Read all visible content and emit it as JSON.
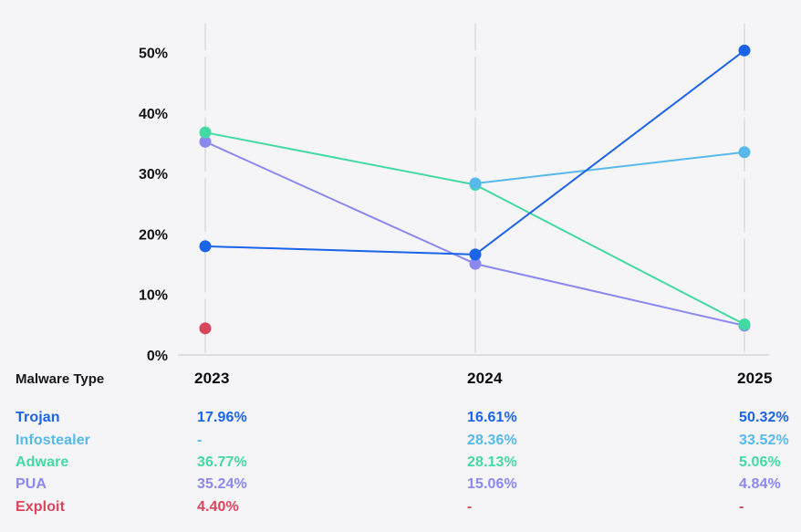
{
  "chart_data": {
    "type": "line",
    "x": [
      "2023",
      "2024",
      "2025"
    ],
    "series": [
      {
        "name": "Trojan",
        "color": "#1b63e8",
        "values": [
          17.96,
          16.61,
          50.32
        ]
      },
      {
        "name": "Infostealer",
        "color": "#56b9ea",
        "values": [
          null,
          28.36,
          33.52
        ]
      },
      {
        "name": "Adware",
        "color": "#43d9a2",
        "values": [
          36.77,
          28.13,
          5.06
        ]
      },
      {
        "name": "PUA",
        "color": "#8b88f0",
        "values": [
          35.24,
          15.06,
          4.84
        ]
      },
      {
        "name": "Exploit",
        "color": "#d9455a",
        "values": [
          4.4,
          null,
          null
        ]
      }
    ],
    "ylim": [
      0,
      50
    ],
    "yticks": [
      "0%",
      "10%",
      "20%",
      "30%",
      "40%",
      "50%"
    ],
    "xlabel": "",
    "ylabel": "",
    "title": "",
    "grid": "vertical-dashed",
    "grid_color": "#dcdcdf",
    "axis_color": "#d6d6d9",
    "legend_position": "table-below"
  },
  "table": {
    "header": {
      "label": "Malware Type",
      "cols": [
        "2023",
        "2024",
        "2025"
      ]
    },
    "rows": [
      {
        "name": "Trojan",
        "color": "#1b63e8",
        "values": [
          "17.96%",
          "16.61%",
          "50.32%"
        ]
      },
      {
        "name": "Infostealer",
        "color": "#56b9ea",
        "values": [
          "-",
          "28.36%",
          "33.52%"
        ]
      },
      {
        "name": "Adware",
        "color": "#43d9a2",
        "values": [
          "36.77%",
          "28.13%",
          "5.06%"
        ]
      },
      {
        "name": "PUA",
        "color": "#8b88f0",
        "values": [
          "35.24%",
          "15.06%",
          "4.84%"
        ]
      },
      {
        "name": "Exploit",
        "color": "#d9455a",
        "values": [
          "4.40%",
          "-",
          "-"
        ]
      }
    ]
  }
}
